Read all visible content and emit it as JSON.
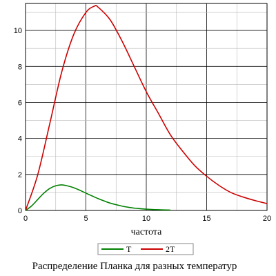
{
  "chart_data": {
    "type": "line",
    "xlabel": "частота",
    "ylabel": "",
    "caption": "Распределение Планка для разных температур",
    "xlim": [
      0,
      20
    ],
    "ylim": [
      0,
      11.5
    ],
    "x_ticks": [
      0,
      5,
      10,
      15,
      20
    ],
    "y_ticks": [
      0,
      2,
      4,
      6,
      8,
      10
    ],
    "grid": true,
    "legend_placement": "bottom-center",
    "series": [
      {
        "name": "T",
        "color": "#008000",
        "x": [
          0,
          0.5,
          1,
          1.5,
          2,
          2.5,
          3,
          3.5,
          4,
          4.5,
          5,
          5.5,
          6,
          6.5,
          7,
          7.5,
          8,
          8.5,
          9,
          9.5,
          10,
          11,
          12
        ],
        "y": [
          0,
          0.25,
          0.6,
          0.95,
          1.22,
          1.37,
          1.42,
          1.36,
          1.26,
          1.12,
          0.96,
          0.81,
          0.66,
          0.53,
          0.41,
          0.32,
          0.24,
          0.18,
          0.13,
          0.1,
          0.07,
          0.04,
          0.02
        ]
      },
      {
        "name": "2T",
        "color": "#cc0000",
        "x": [
          0,
          1,
          2,
          3,
          4,
          5,
          5.7,
          6,
          7,
          8,
          9,
          10,
          11,
          12,
          13,
          14,
          15,
          16,
          17,
          18,
          19,
          20
        ],
        "y": [
          0,
          1.96,
          4.8,
          7.7,
          9.79,
          11.0,
          11.35,
          11.3,
          10.6,
          9.4,
          8.0,
          6.6,
          5.4,
          4.2,
          3.3,
          2.5,
          1.9,
          1.4,
          1.0,
          0.75,
          0.55,
          0.38
        ]
      }
    ]
  }
}
